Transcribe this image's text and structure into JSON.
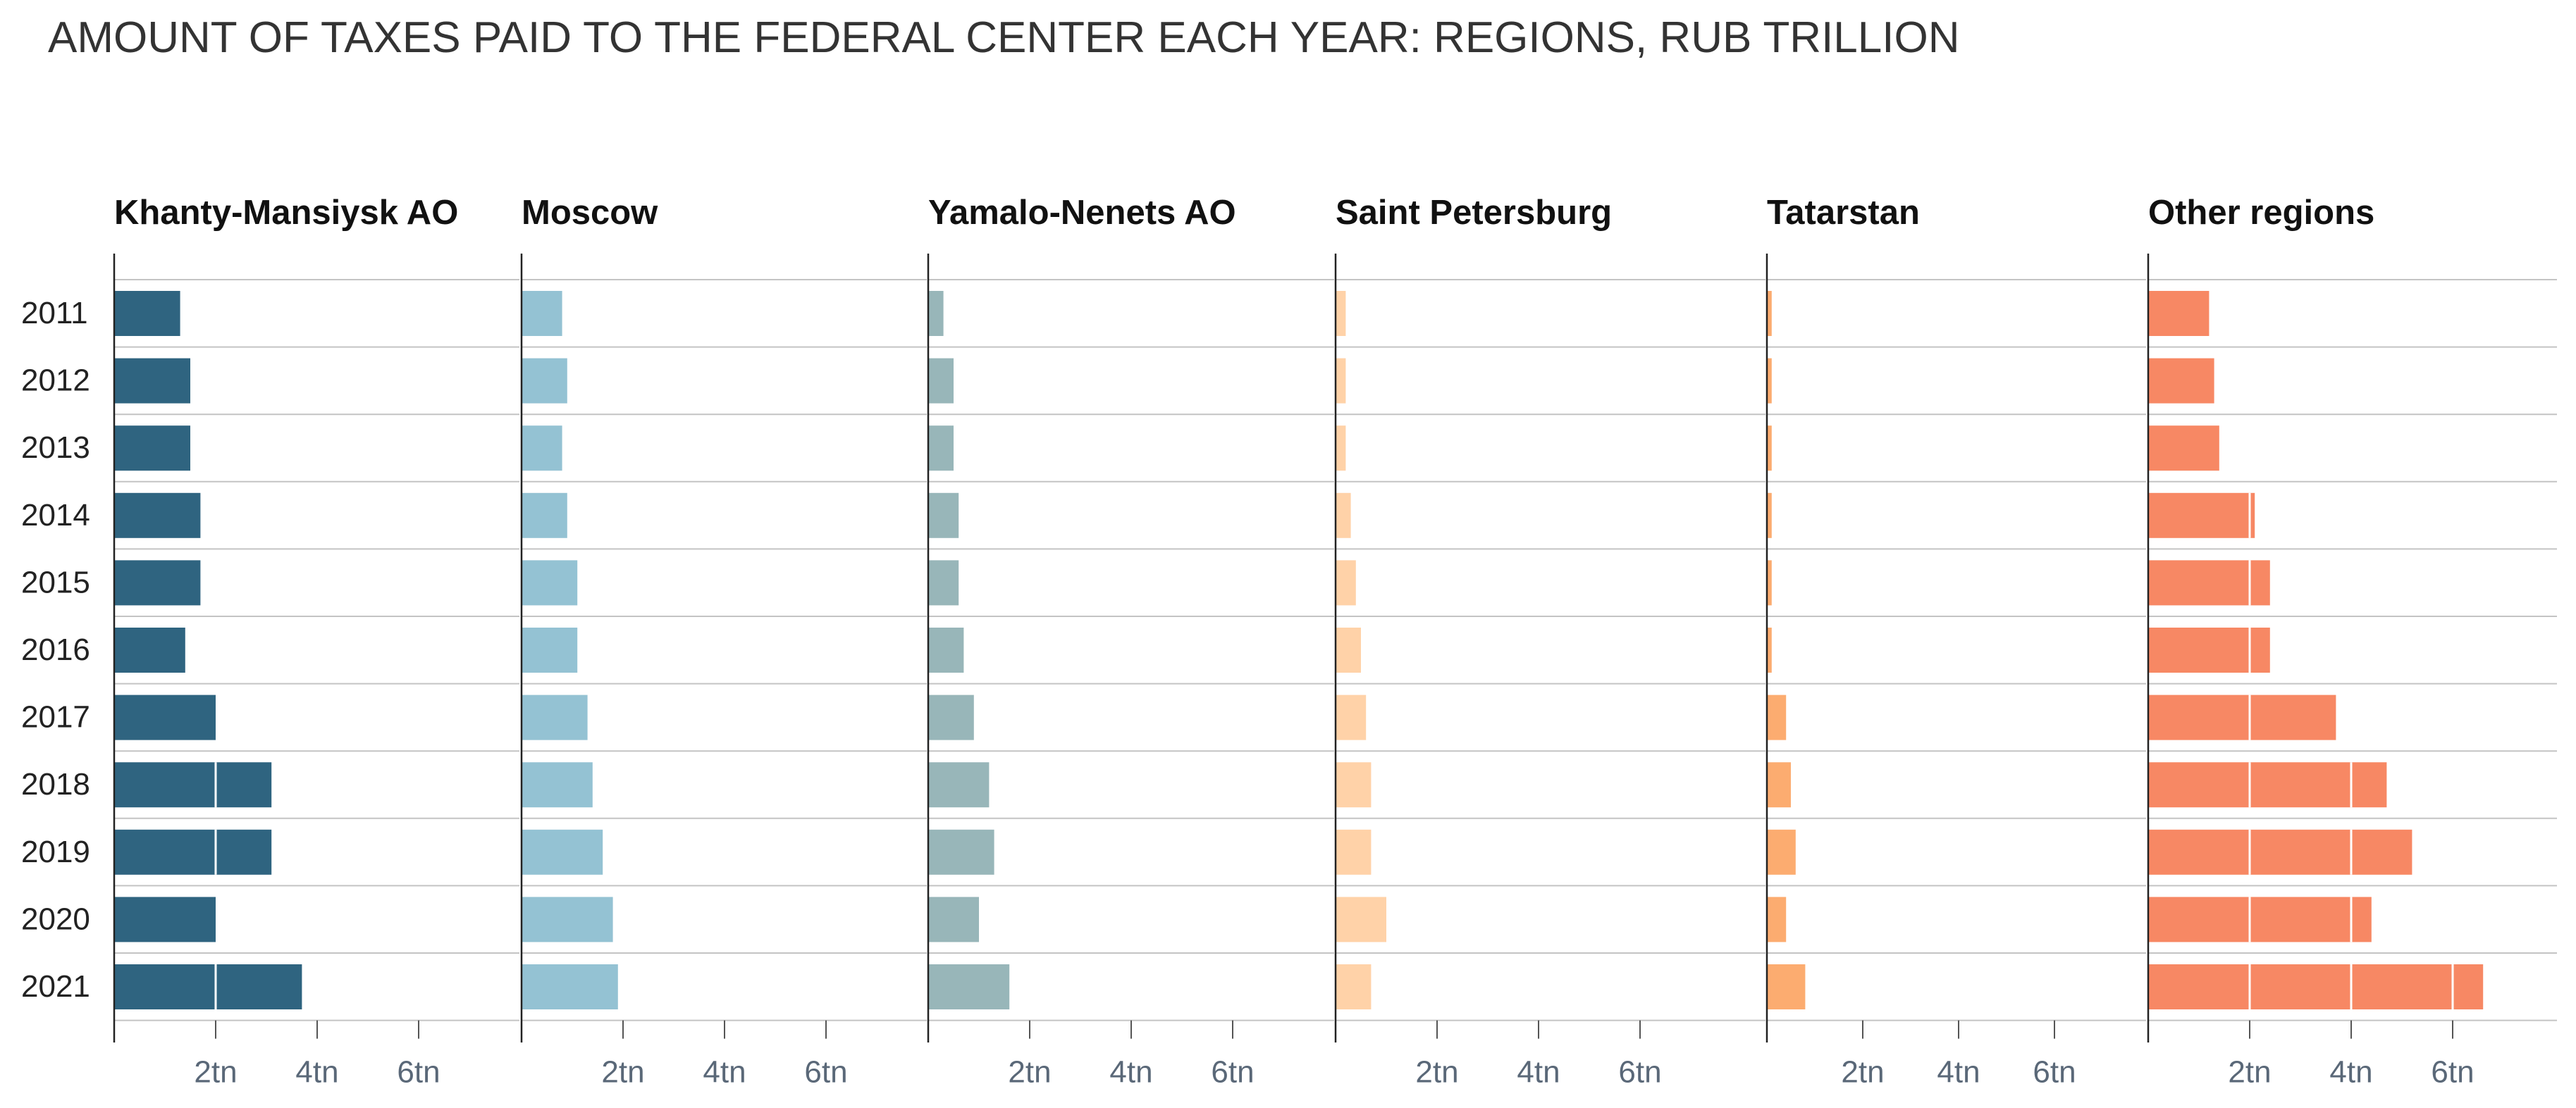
{
  "title": "AMOUNT OF TAXES PAID TO THE FEDERAL CENTER EACH YEAR: REGIONS, RUB TRILLION",
  "chart_data": {
    "type": "bar",
    "orientation": "horizontal",
    "layout": "small-multiples",
    "title": "AMOUNT OF TAXES PAID TO THE FEDERAL CENTER EACH YEAR: REGIONS, RUB TRILLION",
    "categories": [
      "2011",
      "2012",
      "2013",
      "2014",
      "2015",
      "2016",
      "2017",
      "2018",
      "2019",
      "2020",
      "2021"
    ],
    "xticks": [
      2,
      4,
      6
    ],
    "xtick_labels": [
      "2tn",
      "4tn",
      "6tn"
    ],
    "xlim": [
      0,
      8
    ],
    "grid": true,
    "series": [
      {
        "name": "Khanty-Mansiysk AO",
        "color": "#2f6480",
        "values": [
          1.3,
          1.5,
          1.5,
          1.7,
          1.7,
          1.4,
          2.0,
          3.1,
          3.1,
          2.0,
          3.7
        ]
      },
      {
        "name": "Moscow",
        "color": "#94c2d3",
        "values": [
          0.8,
          0.9,
          0.8,
          0.9,
          1.1,
          1.1,
          1.3,
          1.4,
          1.6,
          1.8,
          1.9
        ]
      },
      {
        "name": "Yamalo-Nenets AO",
        "color": "#98b6b9",
        "values": [
          0.3,
          0.5,
          0.5,
          0.6,
          0.6,
          0.7,
          0.9,
          1.2,
          1.3,
          1.0,
          1.6
        ]
      },
      {
        "name": "Saint Petersburg",
        "color": "#ffd2a8",
        "values": [
          0.2,
          0.2,
          0.2,
          0.3,
          0.4,
          0.5,
          0.6,
          0.7,
          0.7,
          1.0,
          0.7
        ]
      },
      {
        "name": "Tatarstan",
        "color": "#fcac70",
        "values": [
          0.1,
          0.1,
          0.1,
          0.1,
          0.1,
          0.1,
          0.4,
          0.5,
          0.6,
          0.4,
          0.8
        ]
      },
      {
        "name": "Other regions",
        "color": "#f78864",
        "values": [
          1.2,
          1.3,
          1.4,
          2.1,
          2.4,
          2.4,
          3.7,
          4.7,
          5.2,
          4.4,
          6.6
        ]
      }
    ]
  }
}
